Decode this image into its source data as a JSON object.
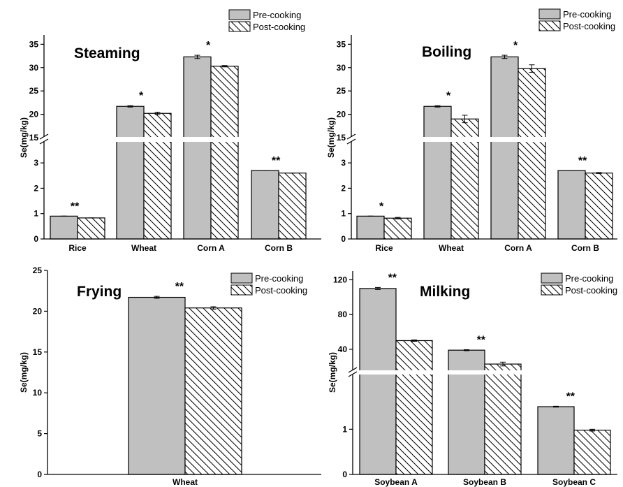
{
  "colors": {
    "pre": "#c0c0c0",
    "edge": "#000000",
    "background": "#ffffff"
  },
  "legend": {
    "pre": "Pre-cooking",
    "post": "Post-cooking"
  },
  "chart_data": [
    {
      "type": "bar",
      "title": "Steaming",
      "ylabel": "Se(mg/kg)",
      "categories": [
        "Rice",
        "Wheat",
        "Corn A",
        "Corn B"
      ],
      "series": [
        {
          "name": "Pre-cooking",
          "values": [
            0.9,
            21.7,
            32.3,
            2.7
          ],
          "errors": [
            0,
            0.15,
            0.35,
            0
          ]
        },
        {
          "name": "Post-cooking",
          "values": [
            0.83,
            20.2,
            30.3,
            2.6
          ],
          "errors": [
            0,
            0.25,
            0.15,
            0
          ]
        }
      ],
      "significance": [
        "**",
        "*",
        "*",
        "**"
      ],
      "axis_break": {
        "lower_range": [
          0,
          3.8
        ],
        "upper_range": [
          15,
          37
        ]
      },
      "ylim": [
        0,
        37
      ],
      "yticks_lower": [
        "0",
        "1",
        "2",
        "3"
      ],
      "yticks_upper": [
        "15",
        "20",
        "25",
        "30",
        "35"
      ],
      "legend_position": "top-right"
    },
    {
      "type": "bar",
      "title": "Boiling",
      "ylabel": "Se(mg/kg)",
      "categories": [
        "Rice",
        "Wheat",
        "Corn A",
        "Corn B"
      ],
      "series": [
        {
          "name": "Pre-cooking",
          "values": [
            0.9,
            21.7,
            32.3,
            2.7
          ],
          "errors": [
            0,
            0.15,
            0.35,
            0
          ]
        },
        {
          "name": "Post-cooking",
          "values": [
            0.82,
            19.0,
            29.8,
            2.6
          ],
          "errors": [
            0.03,
            0.8,
            0.8,
            0.02
          ]
        }
      ],
      "significance": [
        "*",
        "*",
        "*",
        "**"
      ],
      "axis_break": {
        "lower_range": [
          0,
          3.8
        ],
        "upper_range": [
          15,
          37
        ]
      },
      "ylim": [
        0,
        37
      ],
      "yticks_lower": [
        "0",
        "1",
        "2",
        "3"
      ],
      "yticks_upper": [
        "15",
        "20",
        "25",
        "30",
        "35"
      ],
      "legend_position": "top-right"
    },
    {
      "type": "bar",
      "title": "Frying",
      "ylabel": "Se(mg/kg)",
      "categories": [
        "Wheat"
      ],
      "series": [
        {
          "name": "Pre-cooking",
          "values": [
            21.7
          ],
          "errors": [
            0.12
          ]
        },
        {
          "name": "Post-cooking",
          "values": [
            20.4
          ],
          "errors": [
            0.15
          ]
        }
      ],
      "significance": [
        "**"
      ],
      "ylim": [
        0,
        25
      ],
      "yticks": [
        "0",
        "5",
        "10",
        "15",
        "20",
        "25"
      ],
      "legend_position": "top-right"
    },
    {
      "type": "bar",
      "title": "Milking",
      "ylabel": "Se(mg/kg)",
      "categories": [
        "Soybean A",
        "Soybean B",
        "Soybean C"
      ],
      "series": [
        {
          "name": "Pre-cooking",
          "values": [
            110,
            39,
            1.5
          ],
          "errors": [
            1.2,
            0.6,
            0.01
          ]
        },
        {
          "name": "Post-cooking",
          "values": [
            50,
            23,
            0.98
          ],
          "errors": [
            0.8,
            2.2,
            0.02
          ]
        }
      ],
      "significance": [
        "**",
        "**",
        "**"
      ],
      "axis_break": {
        "lower_range": [
          0,
          2.2
        ],
        "upper_range": [
          15,
          130
        ]
      },
      "ylim": [
        0,
        130
      ],
      "yticks_lower": [
        "0",
        "1"
      ],
      "yticks_upper": [
        "40",
        "80",
        "120"
      ],
      "legend_position": "top-right"
    }
  ]
}
